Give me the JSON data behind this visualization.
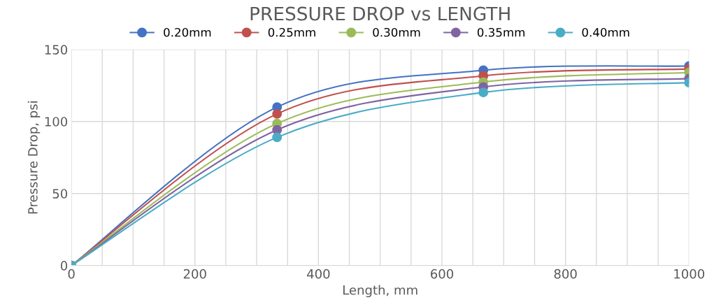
{
  "chart_data": {
    "type": "line",
    "title": "PRESSURE DROP vs LENGTH",
    "xlabel": "Length, mm",
    "ylabel": "Pressure Drop, psi",
    "x": [
      0,
      333,
      667,
      1000
    ],
    "series": [
      {
        "name": "0.20mm",
        "color": "#4472c4",
        "values": [
          0,
          110,
          135.6,
          138.5
        ]
      },
      {
        "name": "0.25mm",
        "color": "#c0504d",
        "values": [
          0,
          105.3,
          131.7,
          136.5
        ]
      },
      {
        "name": "0.30mm",
        "color": "#9bbb59",
        "values": [
          0,
          98.6,
          127.4,
          134
        ]
      },
      {
        "name": "0.35mm",
        "color": "#8064a2",
        "values": [
          0,
          94.2,
          124,
          129.8
        ]
      },
      {
        "name": "0.40mm",
        "color": "#4bacc6",
        "values": [
          0,
          89,
          120.2,
          127
        ]
      }
    ],
    "xlim": [
      0,
      1000
    ],
    "ylim": [
      0,
      150
    ],
    "xticks": [
      0,
      {
        "value": 50,
        "label": null
      },
      {
        "value": 100,
        "label": null
      },
      {
        "value": 150,
        "label": null
      },
      200,
      {
        "value": 250,
        "label": null
      },
      {
        "value": 300,
        "label": null
      },
      {
        "value": 350,
        "label": null
      },
      400,
      {
        "value": 450,
        "label": null
      },
      {
        "value": 500,
        "label": null
      },
      {
        "value": 550,
        "label": null
      },
      600,
      {
        "value": 650,
        "label": null
      },
      {
        "value": 700,
        "label": null
      },
      {
        "value": 750,
        "label": null
      },
      800,
      {
        "value": 850,
        "label": null
      },
      {
        "value": 900,
        "label": null
      },
      {
        "value": 950,
        "label": null
      },
      1000
    ],
    "yticks": [
      0,
      50,
      100,
      150
    ],
    "grid": true,
    "legend": "top",
    "marker": "circle",
    "line_style": "solid"
  }
}
